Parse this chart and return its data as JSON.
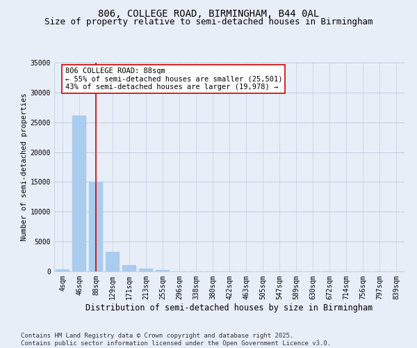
{
  "title1": "806, COLLEGE ROAD, BIRMINGHAM, B44 0AL",
  "title2": "Size of property relative to semi-detached houses in Birmingham",
  "xlabel": "Distribution of semi-detached houses by size in Birmingham",
  "ylabel": "Number of semi-detached properties",
  "categories": [
    "4sqm",
    "46sqm",
    "88sqm",
    "129sqm",
    "171sqm",
    "213sqm",
    "255sqm",
    "296sqm",
    "338sqm",
    "380sqm",
    "422sqm",
    "463sqm",
    "505sqm",
    "547sqm",
    "589sqm",
    "630sqm",
    "672sqm",
    "714sqm",
    "756sqm",
    "797sqm",
    "839sqm"
  ],
  "values": [
    350,
    26100,
    15100,
    3300,
    1050,
    450,
    200,
    50,
    0,
    0,
    0,
    0,
    0,
    0,
    0,
    0,
    0,
    0,
    0,
    0,
    0
  ],
  "bar_color": "#aaccee",
  "vline_x": 2,
  "vline_color": "#cc0000",
  "annotation_text": "806 COLLEGE ROAD: 88sqm\n← 55% of semi-detached houses are smaller (25,501)\n43% of semi-detached houses are larger (19,978) →",
  "annotation_box_color": "#cc0000",
  "ylim": [
    0,
    35000
  ],
  "yticks": [
    0,
    5000,
    10000,
    15000,
    20000,
    25000,
    30000,
    35000
  ],
  "background_color": "#e8eef8",
  "footer": "Contains HM Land Registry data © Crown copyright and database right 2025.\nContains public sector information licensed under the Open Government Licence v3.0.",
  "title1_fontsize": 10,
  "title2_fontsize": 9,
  "xlabel_fontsize": 8.5,
  "ylabel_fontsize": 7.5,
  "tick_fontsize": 7,
  "annotation_fontsize": 7.5,
  "footer_fontsize": 6.5
}
